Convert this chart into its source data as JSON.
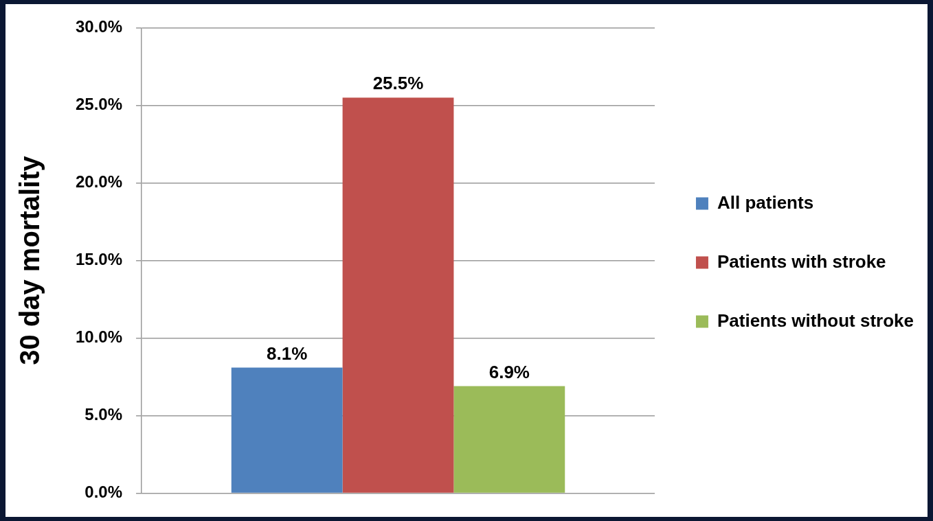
{
  "chart_data": {
    "type": "bar",
    "ylabel": "30 day mortality",
    "categories": [
      null
    ],
    "series": [
      {
        "name": "All patients",
        "color": "#4f81bd",
        "values": [
          8.1
        ],
        "value_labels": [
          "8.1%"
        ]
      },
      {
        "name": "Patients with stroke",
        "color": "#c0504d",
        "values": [
          25.5
        ],
        "value_labels": [
          "25.5%"
        ]
      },
      {
        "name": "Patients without stroke",
        "color": "#9bbb59",
        "values": [
          6.9
        ],
        "value_labels": [
          "6.9%"
        ]
      }
    ],
    "ylim": [
      0,
      30
    ],
    "yticks": [
      {
        "value": 0,
        "label": "0.0%"
      },
      {
        "value": 5,
        "label": "5.0%"
      },
      {
        "value": 10,
        "label": "10.0%"
      },
      {
        "value": 15,
        "label": "15.0%"
      },
      {
        "value": 20,
        "label": "20.0%"
      },
      {
        "value": 25,
        "label": "25.0%"
      },
      {
        "value": 30,
        "label": "30.0%"
      }
    ],
    "grid": "y",
    "legend": "right"
  }
}
